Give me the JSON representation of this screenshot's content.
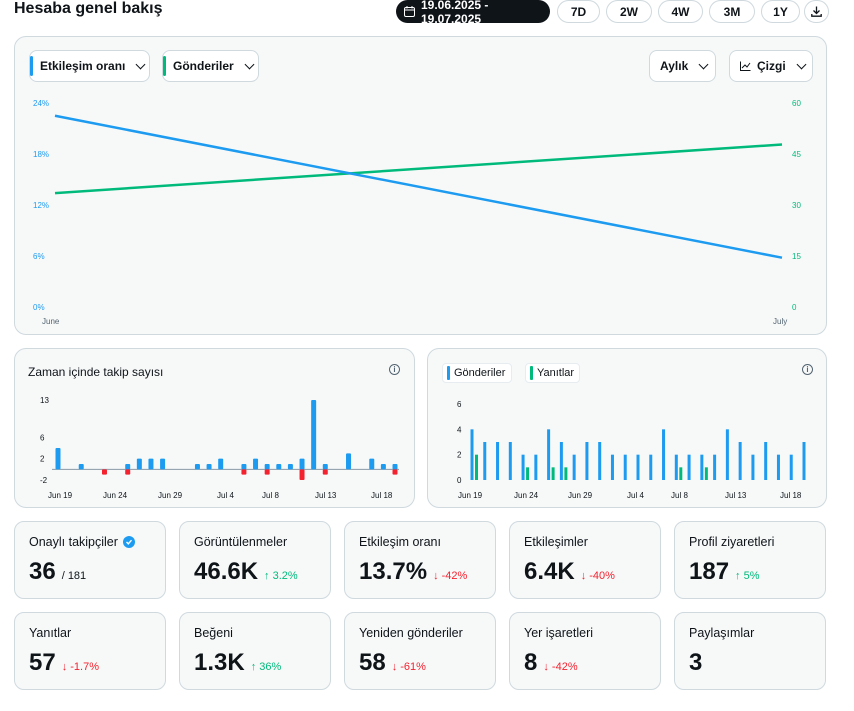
{
  "header": {
    "title": "Hesaba genel bakış",
    "date_range": "19.06.2025 - 19.07.2025",
    "periods": [
      "7D",
      "2W",
      "4W",
      "3M",
      "1Y"
    ]
  },
  "main_chart": {
    "metric1_label": "Etkileşim oranı",
    "metric2_label": "Gönderiler",
    "granularity_label": "Aylık",
    "chart_type_label": "Çizgi"
  },
  "follow_chart": {
    "title": "Zaman içinde takip sayısı"
  },
  "posts_chart": {
    "legend_posts": "Gönderiler",
    "legend_replies": "Yanıtlar"
  },
  "stats": [
    {
      "label": "Onaylı takipçiler",
      "value": "36",
      "sub": "/ 181",
      "change": "",
      "dir": ""
    },
    {
      "label": "Görüntülenmeler",
      "value": "46.6K",
      "sub": "",
      "change": "↑ 3.2%",
      "dir": "up"
    },
    {
      "label": "Etkileşim oranı",
      "value": "13.7%",
      "sub": "",
      "change": "↓ -42%",
      "dir": "down"
    },
    {
      "label": "Etkileşimler",
      "value": "6.4K",
      "sub": "",
      "change": "↓ -40%",
      "dir": "down"
    },
    {
      "label": "Profil ziyaretleri",
      "value": "187",
      "sub": "",
      "change": "↑ 5%",
      "dir": "up"
    },
    {
      "label": "Yanıtlar",
      "value": "57",
      "sub": "",
      "change": "↓ -1.7%",
      "dir": "down"
    },
    {
      "label": "Beğeni",
      "value": "1.3K",
      "sub": "",
      "change": "↑ 36%",
      "dir": "up"
    },
    {
      "label": "Yeniden gönderiler",
      "value": "58",
      "sub": "",
      "change": "↓ -61%",
      "dir": "down"
    },
    {
      "label": "Yer işaretleri",
      "value": "8",
      "sub": "",
      "change": "↓ -42%",
      "dir": "down"
    },
    {
      "label": "Paylaşımlar",
      "value": "3",
      "sub": "",
      "change": "",
      "dir": ""
    }
  ],
  "colors": {
    "blue": "#1d9bf0",
    "green": "#00ba7c",
    "red": "#f4212e"
  },
  "chart_data": [
    {
      "type": "line",
      "x": [
        "June",
        "July"
      ],
      "series": [
        {
          "name": "Etkileşim oranı",
          "values": [
            22.5,
            5.8
          ],
          "axis": "left"
        },
        {
          "name": "Gönderiler",
          "values": [
            33.5,
            47.8
          ],
          "axis": "right"
        }
      ],
      "y_left_ticks": [
        "0%",
        "6%",
        "12%",
        "18%",
        "24%"
      ],
      "y_left_range": [
        0,
        24
      ],
      "y_right_ticks": [
        "0",
        "15",
        "30",
        "45",
        "60"
      ],
      "y_right_range": [
        0,
        60
      ],
      "grid": false
    },
    {
      "type": "bar",
      "x_ticks": [
        "Jun 19",
        "Jun 24",
        "Jun 29",
        "Jul 4",
        "Jul 8",
        "Jul 13",
        "Jul 18"
      ],
      "y_ticks": [
        "-2",
        "2",
        "6",
        "13"
      ],
      "y_range": [
        -2,
        13
      ],
      "values": [
        4,
        0,
        1,
        0,
        0,
        -1,
        1,
        2,
        2,
        2,
        0,
        -1,
        1,
        1,
        2,
        0,
        1,
        2,
        1,
        1,
        1,
        2,
        13,
        1,
        0,
        3,
        0,
        2,
        1,
        1
      ],
      "values_neg": [
        0,
        0,
        0,
        0,
        -1,
        0,
        -1,
        0,
        0,
        0,
        0,
        0,
        0,
        0,
        0,
        0,
        -1,
        0,
        -1,
        0,
        0,
        -2,
        0,
        -1,
        0,
        0,
        0,
        0,
        0,
        -1
      ]
    },
    {
      "type": "bar",
      "x_ticks": [
        "Jun 19",
        "Jun 24",
        "Jun 29",
        "Jul 4",
        "Jul 8",
        "Jul 13",
        "Jul 18"
      ],
      "y_ticks": [
        "0",
        "2",
        "4",
        "6"
      ],
      "y_range": [
        0,
        6
      ],
      "series": [
        {
          "name": "Gönderiler",
          "values": [
            4,
            3,
            3,
            3,
            2,
            2,
            4,
            3,
            2,
            3,
            3,
            2,
            2,
            2,
            2,
            4,
            2,
            2,
            2,
            2,
            4,
            3,
            2,
            3,
            2,
            2,
            3
          ]
        },
        {
          "name": "Yanıtlar",
          "values": [
            2,
            0,
            0,
            0,
            1,
            0,
            1,
            1,
            0,
            0,
            0,
            0,
            0,
            0,
            0,
            0,
            1,
            0,
            1,
            0,
            0,
            0,
            0,
            0,
            0,
            0,
            0
          ]
        }
      ]
    }
  ]
}
